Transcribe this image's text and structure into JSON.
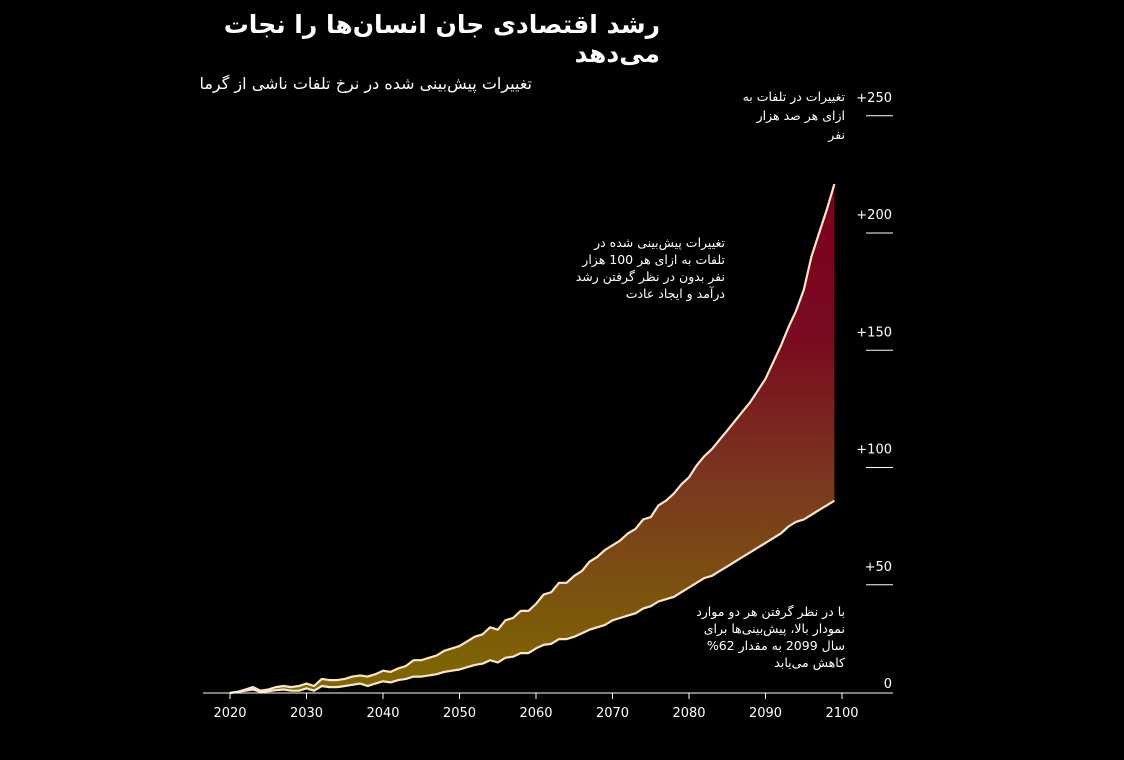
{
  "chart_data": {
    "type": "area",
    "title": "رشد اقتصادی جان انسان‌ها را نجات می‌دهد",
    "subtitle": "تغییرات پیش‌بینی شده در نرخ تلفات ناشی از گرما",
    "ylabel": "تغییرات در تلفات به ازای هر صد هزار نفر",
    "xlim": [
      2016,
      2106
    ],
    "ylim": [
      0,
      255
    ],
    "x_ticks": [
      "2020",
      "2030",
      "2040",
      "2050",
      "2060",
      "2070",
      "2080",
      "2090",
      "2100"
    ],
    "y_ticks": [
      {
        "value": 0,
        "label": "0"
      },
      {
        "value": 50,
        "label": "+50"
      },
      {
        "value": 100,
        "label": "+100"
      },
      {
        "value": 150,
        "label": "+150"
      },
      {
        "value": 200,
        "label": "+200"
      },
      {
        "value": 250,
        "label": "+250"
      }
    ],
    "x": [
      2020,
      2021,
      2022,
      2023,
      2024,
      2025,
      2026,
      2027,
      2028,
      2029,
      2030,
      2031,
      2032,
      2033,
      2034,
      2035,
      2036,
      2037,
      2038,
      2039,
      2040,
      2041,
      2042,
      2043,
      2044,
      2045,
      2046,
      2047,
      2048,
      2049,
      2050,
      2051,
      2052,
      2053,
      2054,
      2055,
      2056,
      2057,
      2058,
      2059,
      2060,
      2061,
      2062,
      2063,
      2064,
      2065,
      2066,
      2067,
      2068,
      2069,
      2070,
      2071,
      2072,
      2073,
      2074,
      2075,
      2076,
      2077,
      2078,
      2079,
      2080,
      2081,
      2082,
      2083,
      2084,
      2085,
      2086,
      2087,
      2088,
      2089,
      2090,
      2091,
      2092,
      2093,
      2094,
      2095,
      2096,
      2097,
      2098,
      2099
    ],
    "series": [
      {
        "values": [
          0,
          0.5,
          1.5,
          2.5,
          1,
          1.5,
          2.5,
          3,
          2.5,
          3,
          4,
          3,
          6,
          5.5,
          5.5,
          6,
          7,
          7.5,
          7,
          8,
          9.5,
          9,
          10.5,
          11.5,
          14,
          14,
          15,
          16,
          18,
          19,
          20,
          22,
          24,
          25,
          28,
          27,
          31,
          32,
          35,
          35,
          38,
          42,
          43,
          47,
          47,
          50,
          52,
          56,
          58,
          61,
          63,
          65,
          68,
          70,
          74,
          75,
          80,
          82,
          85,
          89,
          92,
          97,
          101,
          104,
          108,
          112,
          116,
          120,
          124,
          129,
          134,
          141,
          148,
          156,
          163,
          172,
          186,
          196,
          206,
          217
        ]
      },
      {
        "values": [
          0,
          0.5,
          1,
          1.5,
          0.5,
          0.8,
          1.2,
          1.5,
          1,
          1,
          2,
          1,
          3,
          2.5,
          2.5,
          3,
          3.5,
          4,
          3,
          4,
          5,
          4.5,
          5.5,
          6,
          7,
          7,
          7.5,
          8,
          9,
          9.5,
          10,
          11,
          12,
          12.5,
          14,
          13,
          15,
          15.5,
          17,
          17,
          19,
          20.5,
          21,
          23,
          23,
          24,
          25.5,
          27,
          28,
          29,
          31,
          32,
          33,
          34,
          36,
          37,
          39,
          40,
          41,
          43,
          45,
          47,
          49,
          50,
          52,
          54,
          56,
          58,
          60,
          62,
          64,
          66,
          68,
          71,
          73,
          74,
          76,
          78,
          80,
          82
        ]
      }
    ],
    "annotations": {
      "top": "تغییرات پیش‌بینی شده در\nتلفات به ازای هر 100 هزار\nنفر بدون در نظر گرفتن رشد\nدرآمد و ایجاد عادت",
      "bottom": "با در نظر گرفتن هر دو موارد\nنمودار بالا، پیش‌بینی‌ها برای\nسال 2099 به مقدار 62%\nکاهش می‌یابد"
    },
    "colors": {
      "background": "#000000",
      "top_fill": "#7c001e",
      "bottom_fill": "#7e6a00",
      "line": "#fde6c8"
    }
  }
}
